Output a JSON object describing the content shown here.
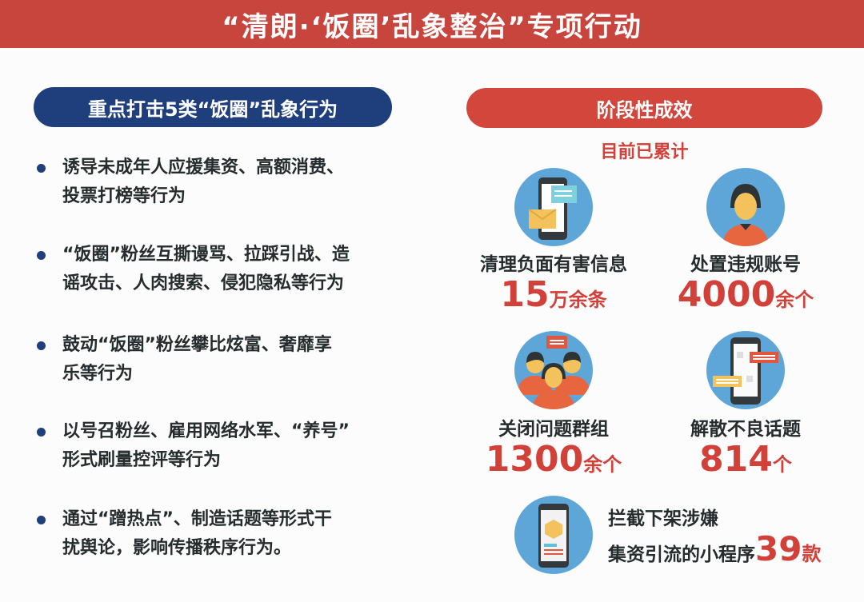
{
  "title": "“清朗·‘饭圈’乱象整治”专项行动",
  "left": {
    "heading": "重点打击5类“饭圈”乱象行为",
    "items": [
      {
        "line1": "诱导未成年人应援集资、高额消费、",
        "line2": "投票打榜等行为"
      },
      {
        "line1": "“饭圈”粉丝互撕谩骂、拉踩引战、造",
        "line2": "谣攻击、人肉搜索、侵犯隐私等行为"
      },
      {
        "line1": "鼓动“饭圈”粉丝攀比炫富、奢靡享",
        "line2": "乐等行为"
      },
      {
        "line1": "以号召粉丝、雇用网络水军、“养号”",
        "line2": "形式刷量控评等行为"
      },
      {
        "line1": "通过“蹭热点”、制造话题等形式干",
        "line2": "扰舆论，影响传播秩序行为。"
      }
    ]
  },
  "right": {
    "heading": "阶段性成效",
    "subheading": "目前已累计",
    "stats": [
      {
        "label": "清理负面有害信息",
        "value": "15",
        "unit": "万余条",
        "icon": "phone-message-icon"
      },
      {
        "label": "处置违规账号",
        "value": "4000",
        "unit": "余个",
        "icon": "user-account-icon"
      },
      {
        "label": "关闭问题群组",
        "value": "1300",
        "unit": "余个",
        "icon": "group-chat-icon"
      },
      {
        "label": "解散不良话题",
        "value": "814",
        "unit": "个",
        "icon": "phone-chat-icon"
      }
    ],
    "last": {
      "line1": "拦截下架涉嫌",
      "line2": "集资引流的小程序",
      "value": "39",
      "unit": "款",
      "icon": "mini-program-icon"
    }
  },
  "colors": {
    "header": "#c7453d",
    "blue_pill": "#1f3e7c",
    "red_pill": "#d2463c",
    "accent_red": "#d2403a",
    "icon_bg": "#5ea6d8"
  }
}
